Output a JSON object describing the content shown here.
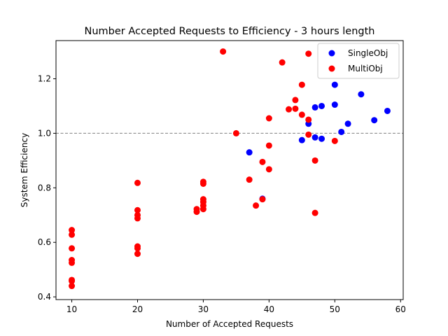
{
  "chart_data": {
    "type": "scatter",
    "title": "Number Accepted Requests to Efficiency - 3 hours length",
    "xlabel": "Number of Accepted Requests",
    "ylabel": "System Efficiency",
    "xlim": [
      7.6,
      60.4
    ],
    "ylim": [
      0.39,
      1.34
    ],
    "xticks": [
      10,
      20,
      30,
      40,
      50,
      60
    ],
    "yticks": [
      0.4,
      0.6,
      0.8,
      1.0,
      1.2
    ],
    "ytick_labels": [
      "0.4",
      "0.6",
      "0.8",
      "1.0",
      "1.2"
    ],
    "reference_line": {
      "y": 1.0,
      "style": "dashed",
      "color": "#808080"
    },
    "grid": false,
    "legend": {
      "placement": "top-right"
    },
    "series": [
      {
        "name": "SingleObj",
        "color": "#0000ff",
        "points": [
          [
            37,
            0.93
          ],
          [
            39,
            0.76
          ],
          [
            45,
            0.975
          ],
          [
            46,
            1.035
          ],
          [
            47,
            0.985
          ],
          [
            47,
            1.095
          ],
          [
            48,
            0.98
          ],
          [
            48,
            1.1
          ],
          [
            50,
            1.105
          ],
          [
            50,
            1.178
          ],
          [
            51,
            1.005
          ],
          [
            52,
            1.035
          ],
          [
            54,
            1.143
          ],
          [
            56,
            1.048
          ],
          [
            58,
            1.082
          ]
        ]
      },
      {
        "name": "MultiObj",
        "color": "#ff0000",
        "points": [
          [
            10,
            0.645
          ],
          [
            10,
            0.628
          ],
          [
            10,
            0.578
          ],
          [
            10,
            0.535
          ],
          [
            10,
            0.525
          ],
          [
            10,
            0.462
          ],
          [
            10,
            0.458
          ],
          [
            10,
            0.44
          ],
          [
            20,
            0.818
          ],
          [
            20,
            0.718
          ],
          [
            20,
            0.7
          ],
          [
            20,
            0.688
          ],
          [
            20,
            0.585
          ],
          [
            20,
            0.578
          ],
          [
            20,
            0.558
          ],
          [
            29,
            0.722
          ],
          [
            29,
            0.712
          ],
          [
            30,
            0.822
          ],
          [
            30,
            0.815
          ],
          [
            30,
            0.758
          ],
          [
            30,
            0.748
          ],
          [
            30,
            0.735
          ],
          [
            30,
            0.722
          ],
          [
            33,
            1.3
          ],
          [
            35,
            1.0
          ],
          [
            37,
            0.83
          ],
          [
            38,
            0.735
          ],
          [
            39,
            0.895
          ],
          [
            39,
            0.758
          ],
          [
            40,
            1.055
          ],
          [
            40,
            0.955
          ],
          [
            40,
            0.868
          ],
          [
            42,
            1.26
          ],
          [
            43,
            1.088
          ],
          [
            44,
            1.122
          ],
          [
            44,
            1.09
          ],
          [
            45,
            1.178
          ],
          [
            45,
            1.068
          ],
          [
            46,
            1.292
          ],
          [
            46,
            1.05
          ],
          [
            46,
            0.995
          ],
          [
            47,
            0.9
          ],
          [
            47,
            0.708
          ],
          [
            50,
            0.972
          ]
        ]
      }
    ]
  }
}
